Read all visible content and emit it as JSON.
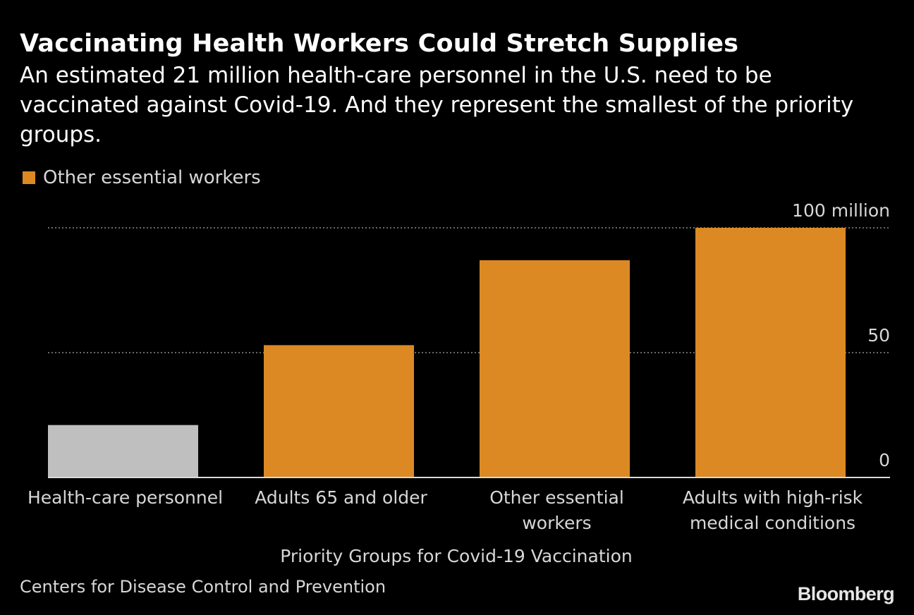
{
  "colors": {
    "background": "#000000",
    "highlight": "#dc8924",
    "baseline_group": "#bfbfbf",
    "text": "#ffffff",
    "muted_text": "#d7d7d7",
    "grid": "#8c8c8c"
  },
  "header": {
    "title": "Vaccinating Health Workers Could Stretch Supplies",
    "subtitle": "An estimated 21 million health-care personnel in the U.S. need to be vaccinated against Covid-19. And they represent the smallest of the priority groups."
  },
  "legend": {
    "label": "Other essential workers",
    "color": "#dc8924"
  },
  "footer": {
    "source": "Centers for Disease Control and Prevention",
    "brand": "Bloomberg"
  },
  "chart_data": {
    "type": "bar",
    "title": "Vaccinating Health Workers Could Stretch Supplies",
    "xlabel": "Priority Groups for Covid-19 Vaccination",
    "ylabel": "",
    "categories": [
      [
        "Health-care personnel"
      ],
      [
        "Adults 65 and older"
      ],
      [
        "Other essential",
        "workers"
      ],
      [
        "Adults with high-risk",
        "medical conditions"
      ]
    ],
    "values": [
      21,
      53,
      87,
      100
    ],
    "bar_colors": [
      "#bfbfbf",
      "#dc8924",
      "#dc8924",
      "#dc8924"
    ],
    "ylim": [
      0,
      100
    ],
    "yticks": [
      0,
      50,
      100
    ],
    "ytick_labels": [
      "0",
      "50",
      "100 million"
    ],
    "grid": true,
    "y_axis_side": "right",
    "legend_position": "top-left"
  }
}
